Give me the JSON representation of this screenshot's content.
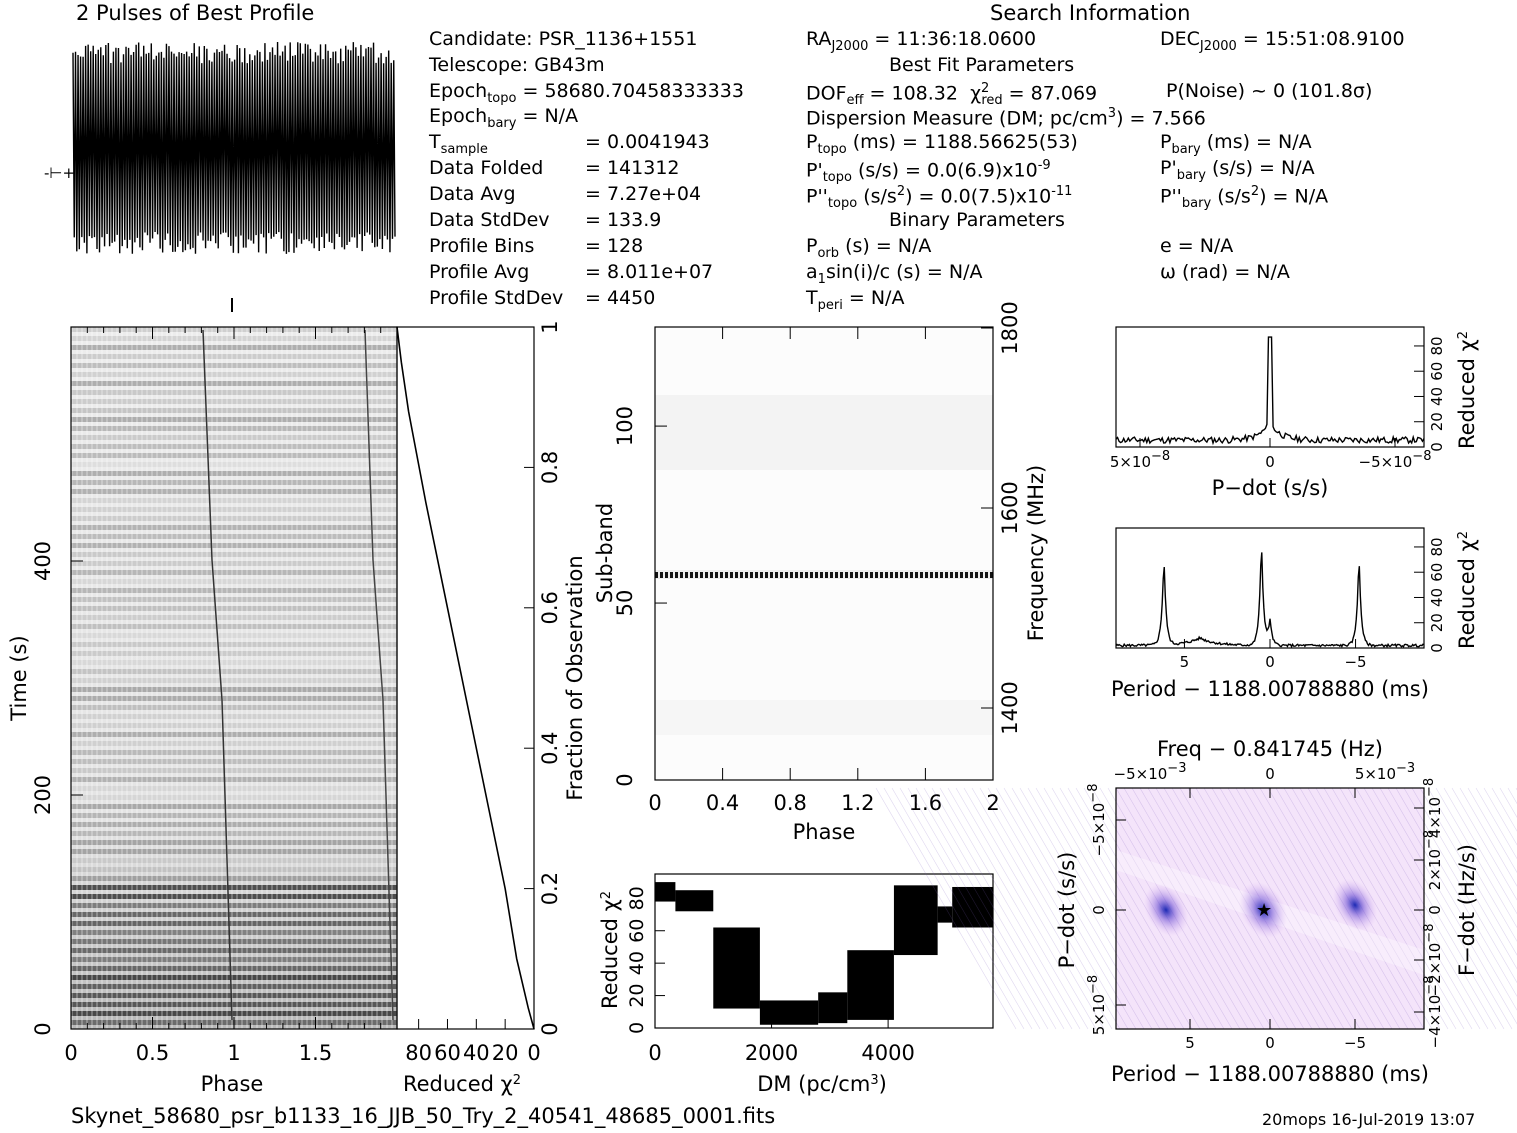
{
  "header": {
    "profile_title": "2 Pulses of Best Profile",
    "search_title": "Search Information",
    "candidate": "Candidate:  PSR_1136+1551",
    "telescope": "Telescope:  GB43m",
    "epoch_topo": "Epoch",
    "epoch_topo_sub": "topo",
    "epoch_topo_val": " = 58680.70458333333",
    "epoch_bary": "Epoch",
    "epoch_bary_sub": "bary",
    "epoch_bary_val": " = N/A",
    "tsample": "T",
    "tsample_sub": "sample",
    "tsample_val": "=   0.0041943",
    "data_folded": "Data Folded",
    "data_folded_val": "=   141312",
    "data_avg": "Data Avg",
    "data_avg_val": "=   7.27e+04",
    "data_stddev": "Data StdDev",
    "data_stddev_val": "=   133.9",
    "profile_bins": "Profile Bins",
    "profile_bins_val": "=   128",
    "profile_avg": "Profile Avg",
    "profile_avg_val": "=   8.011e+07",
    "profile_stddev": "Profile StdDev",
    "profile_stddev_val": "=   4450",
    "ra": "RA",
    "ra_sub": "J2000",
    "ra_val": " = 11:36:18.0600",
    "dec": "DEC",
    "dec_sub": "J2000",
    "dec_val": " = 15:51:08.9100",
    "best_fit": "Best Fit Parameters",
    "dof": "DOF",
    "dof_sub": "eff",
    "dof_val": " = 108.32",
    "chi": "χ",
    "chi_sup": "2",
    "chi_sub": "red",
    "chi_val": " = 87.069",
    "pnoise": "P(Noise) ~ 0    (101.8σ)",
    "dm_line": "Dispersion Measure (DM; pc/cm",
    "dm_sup": "3",
    "dm_val": ") = 7.566",
    "ptopo": "P",
    "ptopo_sub": "topo",
    "ptopo_val": " (ms) =   1188.56625(53)",
    "pbary": "P",
    "pbary_sub": "bary",
    "pbary_val": " (ms) = N/A",
    "pdtopo": "P'",
    "pdtopo_sub": "topo",
    "pdtopo_val": " (s/s) = 0.0(6.9)x10",
    "pdtopo_exp": "-9",
    "pdbary": "P'",
    "pdbary_sub": "bary",
    "pdbary_val": " (s/s) = N/A",
    "pddtopo": "P''",
    "pddtopo_sub": "topo",
    "pddtopo_val": " (s/s",
    "pddtopo_sup": "2",
    "pddtopo_val2": ") = 0.0(7.5)x10",
    "pddtopo_exp": "-11",
    "pddbary": "P''",
    "pddbary_sub": "bary",
    "pddbary_val": " (s/s",
    "pddbary_sup": "2",
    "pddbary_val2": ") = N/A",
    "binary": "Binary Parameters",
    "porb": "P",
    "porb_sub": "orb",
    "porb_val": " (s) = N/A",
    "ecc": "e = N/A",
    "a1": "a",
    "a1_sub": "1",
    "a1_val": "sin(i)/c (s) = N/A",
    "omega": "ω (rad) = N/A",
    "tperi": "T",
    "tperi_sub": "peri",
    "tperi_val": " = N/A"
  },
  "footer": {
    "filename": "Skynet_58680_psr_b1133_16_JJB_50_Try_2_40541_48685_0001.fits",
    "stamp": "20mops  16-Jul-2019 13:07"
  },
  "chart_data": [
    {
      "type": "line",
      "title": "2 Pulses of Best Profile",
      "x": [
        0,
        2
      ],
      "note_shape": "dense noise-like profile across two pulses"
    },
    {
      "type": "heatmap",
      "id": "time_phase",
      "xlabel": "Phase",
      "ylabel": "Time (s)",
      "xlim": [
        0,
        2
      ],
      "ylim": [
        0,
        600
      ],
      "x_ticks": [
        "0",
        "0.5",
        "1",
        "1.5"
      ],
      "y_ticks": [
        "0",
        "200",
        "400"
      ]
    },
    {
      "type": "line",
      "id": "time_chi",
      "xlabel": "Reduced χ",
      "xlabel_sup": "2",
      "x_ticks": [
        "80",
        "60",
        "40",
        "20",
        "0"
      ],
      "ylabel_right": "Fraction of Observation",
      "y_ticks": [
        "0",
        "0.2",
        "0.4",
        "0.6",
        "0.8",
        "1"
      ],
      "x": [
        0,
        4,
        12,
        20,
        30,
        45,
        60,
        75,
        87,
        92,
        95
      ],
      "y": [
        0,
        0.03,
        0.1,
        0.2,
        0.3,
        0.45,
        0.6,
        0.75,
        0.88,
        0.95,
        1.0
      ]
    },
    {
      "type": "heatmap",
      "id": "subband_phase",
      "xlabel": "Phase",
      "ylabel": "Sub-band",
      "ylabel_right": "Frequency (MHz)",
      "x_ticks": [
        "0",
        "0.4",
        "0.8",
        "1.2",
        "1.6",
        "2"
      ],
      "y_ticks": [
        "0",
        "50",
        "100"
      ],
      "freq_ticks": [
        "1400",
        "1600",
        "1800"
      ],
      "xlim": [
        0,
        2
      ],
      "ylim": [
        0,
        128
      ],
      "bright_band_subband": 58
    },
    {
      "type": "line",
      "id": "dm_chi",
      "xlabel": "DM (pc/cm",
      "xlabel_sup": "3",
      "xlabel_end": ")",
      "ylabel": "Reduced χ",
      "ylabel_sup": "2",
      "x_ticks": [
        "0",
        "2000",
        "4000"
      ],
      "y_ticks": [
        "0",
        "20",
        "40",
        "60",
        "80"
      ],
      "xlim": [
        0,
        5800
      ],
      "ylim": [
        0,
        95
      ],
      "steps": [
        {
          "x0": 0,
          "x1": 350,
          "lo": 78,
          "hi": 90
        },
        {
          "x0": 350,
          "x1": 1000,
          "lo": 72,
          "hi": 85
        },
        {
          "x0": 1000,
          "x1": 1800,
          "lo": 12,
          "hi": 62
        },
        {
          "x0": 1800,
          "x1": 2800,
          "lo": 2,
          "hi": 17
        },
        {
          "x0": 2800,
          "x1": 3300,
          "lo": 3,
          "hi": 22
        },
        {
          "x0": 3300,
          "x1": 4100,
          "lo": 5,
          "hi": 48
        },
        {
          "x0": 4100,
          "x1": 4850,
          "lo": 45,
          "hi": 88
        },
        {
          "x0": 4850,
          "x1": 5100,
          "lo": 65,
          "hi": 75
        },
        {
          "x0": 5100,
          "x1": 5800,
          "lo": 62,
          "hi": 87
        }
      ]
    },
    {
      "type": "line",
      "id": "pdot_chi",
      "xlabel": "P−dot (s/s)",
      "ylabel": "Reduced χ",
      "ylabel_sup": "2",
      "x_ticks": [
        "5×10",
        "0",
        "−5×10"
      ],
      "x_tick_exp": "−8",
      "y_ticks": [
        "0",
        "20",
        "40",
        "60",
        "80"
      ],
      "xlim": [
        -9e-08,
        9e-08
      ],
      "ylim": [
        0,
        95
      ],
      "peak": {
        "x": 0,
        "y": 87
      }
    },
    {
      "type": "line",
      "id": "period_chi",
      "xlabel": "Period − 1188.00788880 (ms)",
      "ylabel": "Reduced χ",
      "ylabel_sup": "2",
      "x_ticks": [
        "5",
        "0",
        "−5"
      ],
      "y_ticks": [
        "0",
        "20",
        "40",
        "60",
        "80"
      ],
      "xlim": [
        9,
        -9
      ],
      "ylim": [
        0,
        95
      ],
      "peaks": [
        {
          "x": 6.2,
          "y": 72
        },
        {
          "x": 0.5,
          "y": 85
        },
        {
          "x": 0,
          "y": 20
        },
        {
          "x": -5.2,
          "y": 73
        }
      ]
    },
    {
      "type": "heatmap",
      "id": "pp_dot",
      "xlabel": "Period − 1188.00788880 (ms)",
      "ylabel": "P−dot (s/s)",
      "ylabel_right": "F−dot (Hz/s)",
      "top_label": "Freq − 0.841745 (Hz)",
      "x_ticks": [
        "5",
        "0",
        "−5"
      ],
      "top_ticks": [
        "−5×10",
        "0",
        "5×10"
      ],
      "top_exp": "−3",
      "left_ticks": [
        "−5×10",
        "0",
        "5×10"
      ],
      "left_exp": "−8",
      "right_ticks": [
        "4×10",
        "2×10",
        "0",
        "−2×10",
        "−4×10"
      ],
      "right_exp": "−8"
    }
  ]
}
